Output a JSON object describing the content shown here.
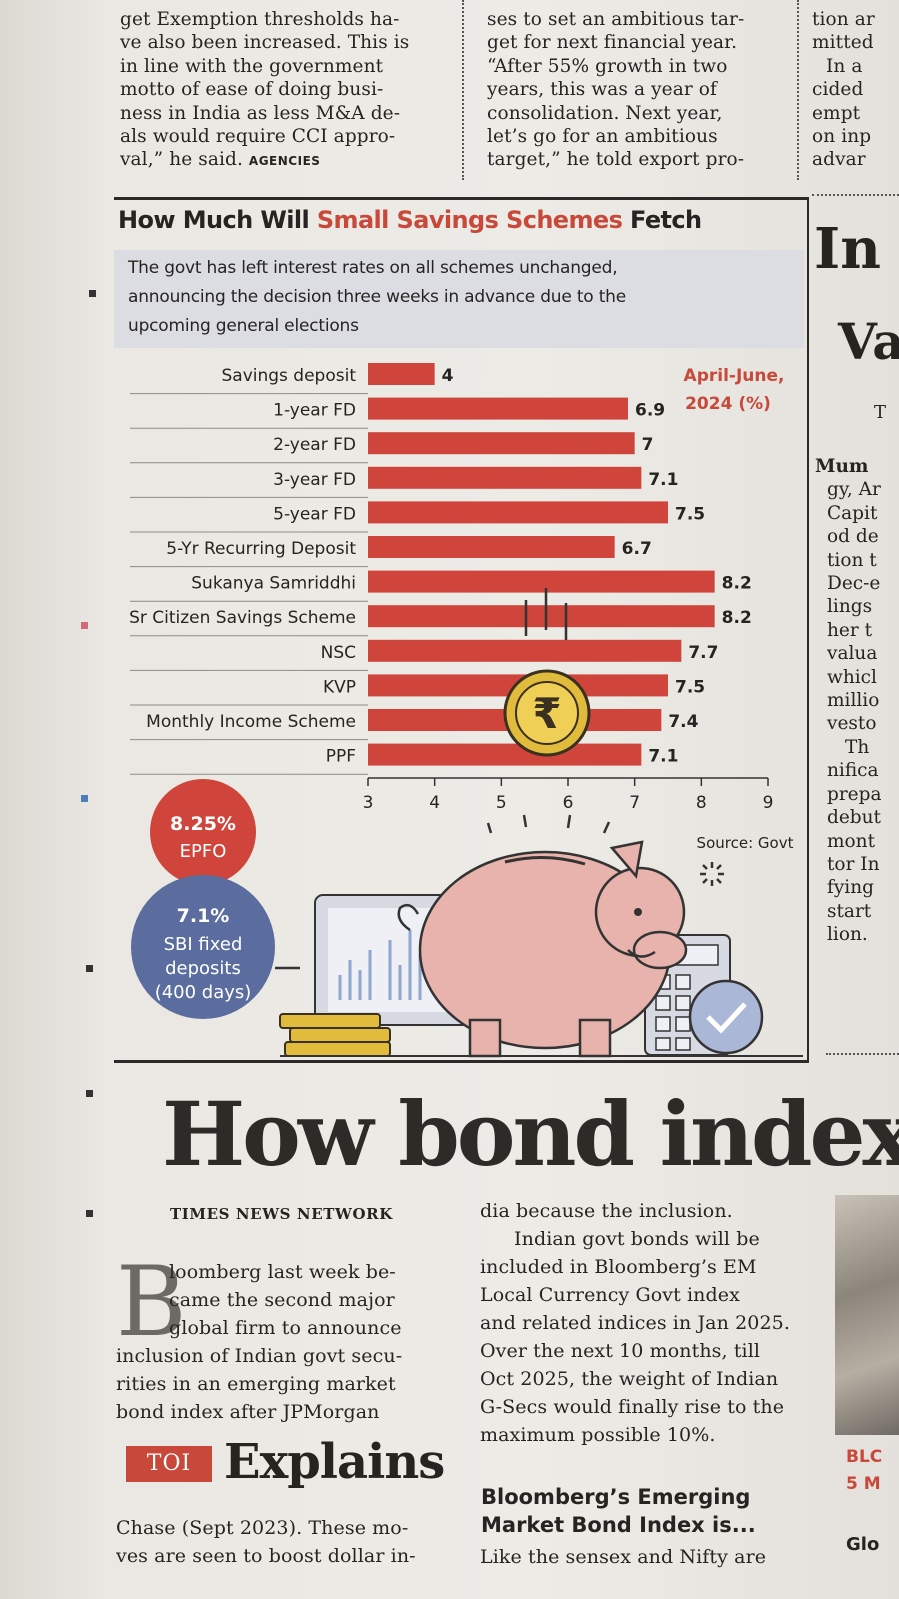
{
  "top_columns": {
    "col1": [
      "get Exemption thresholds ha-",
      "ve also been increased. This is",
      "in line with the government",
      "motto of ease of doing busi-",
      "ness in India as less M&A de-",
      "als would require CCI appro-"
    ],
    "col1_last": "val,” he said.",
    "col1_credit": "AGENCIES",
    "col2": [
      "ses to set an ambitious tar-",
      "get for next financial year.",
      "“After 55% growth in two",
      "years, this was a year of",
      "consolidation. Next year,",
      "let’s go for an ambitious",
      "target,” he told export pro-"
    ],
    "col3": [
      "tion ar",
      "mitted",
      "In a",
      "cided",
      "empt",
      "on inp",
      "advar"
    ]
  },
  "infographic": {
    "title_part1": "How Much Will ",
    "title_highlight": "Small Savings Schemes",
    "title_part2": " Fetch",
    "subtitle_lines": [
      "The govt has left interest rates on all schemes unchanged,",
      "announcing the decision three weeks in advance due to the",
      "upcoming general elections"
    ],
    "period_label_1": "April-June,",
    "period_label_2": "2024 (%)",
    "source": "Source: Govt",
    "epfo_value": "8.25%",
    "epfo_label": "EPFO",
    "sbi_value": "7.1%",
    "sbi_label_lines": [
      "SBI fixed",
      "deposits",
      "(400 days)"
    ],
    "rupee_symbol": "₹"
  },
  "colors": {
    "bar": "#d0453b",
    "accent": "#c8483a",
    "sbi": "#5a6d9e",
    "subtitle_bg": "#dcdde3",
    "piggy": "#e7b3ac"
  },
  "chart_data": {
    "type": "bar",
    "orientation": "horizontal",
    "title": "How Much Will Small Savings Schemes Fetch",
    "categories": [
      "Savings deposit",
      "1-year FD",
      "2-year FD",
      "3-year FD",
      "5-year FD",
      "5-Yr Recurring Deposit",
      "Sukanya Samriddhi",
      "Sr Citizen Savings Scheme",
      "NSC",
      "KVP",
      "Monthly Income Scheme",
      "PPF"
    ],
    "values": [
      4,
      6.9,
      7,
      7.1,
      7.5,
      6.7,
      8.2,
      8.2,
      7.7,
      7.5,
      7.4,
      7.1
    ],
    "value_labels": [
      "4",
      "6.9",
      "7",
      "7.1",
      "7.5",
      "6.7",
      "8.2",
      "8.2",
      "7.7",
      "7.5",
      "7.4",
      "7.1"
    ],
    "xlim": [
      3,
      9
    ],
    "xticks": [
      "3",
      "4",
      "5",
      "6",
      "7",
      "8",
      "9"
    ],
    "legend_note": "April-June, 2024 (%)",
    "grid": false
  },
  "right_column": [
    "Mum",
    "gy, Ar",
    "Capit",
    "od de",
    "tion t",
    "Dec-e",
    "lings",
    "her t",
    "valua",
    "whicl",
    "millio",
    "vesto",
    "Th",
    "nifica",
    "prepa",
    "debut",
    "mont",
    "tor In",
    "fying",
    "start",
    "lion."
  ],
  "right_big": {
    "word1": "In",
    "word2": "Va",
    "t": "T"
  },
  "article": {
    "headline": "How bond index",
    "byline": "TIMES NEWS NETWORK",
    "dropcap": "B",
    "col1": [
      "loomberg last week be-",
      "came the second major",
      "global firm to announce",
      "inclusion of Indian govt secu-",
      "rities in an emerging market",
      "bond index after JPMorgan"
    ],
    "badge": "TOI",
    "explains": "Explains",
    "col1_after": [
      "Chase (Sept 2023). These mo-",
      "ves are seen to boost dollar in-"
    ],
    "col2": [
      "dia because the inclusion.",
      "Indian govt bonds will be",
      "included in Bloomberg’s EM",
      "Local Currency Govt index",
      "and related indices in Jan 2025.",
      "Over the next 10 months, till",
      "Oct 2025, the weight of Indian",
      "G-Secs would finally rise to the",
      "maximum possible 10%."
    ],
    "subhead_lines": [
      "Bloomberg’s Emerging",
      "Market Bond Index is..."
    ],
    "col2_after": "Like the sensex and Nifty are",
    "right_bits": [
      "BLC",
      "5 M",
      "Glo"
    ]
  }
}
